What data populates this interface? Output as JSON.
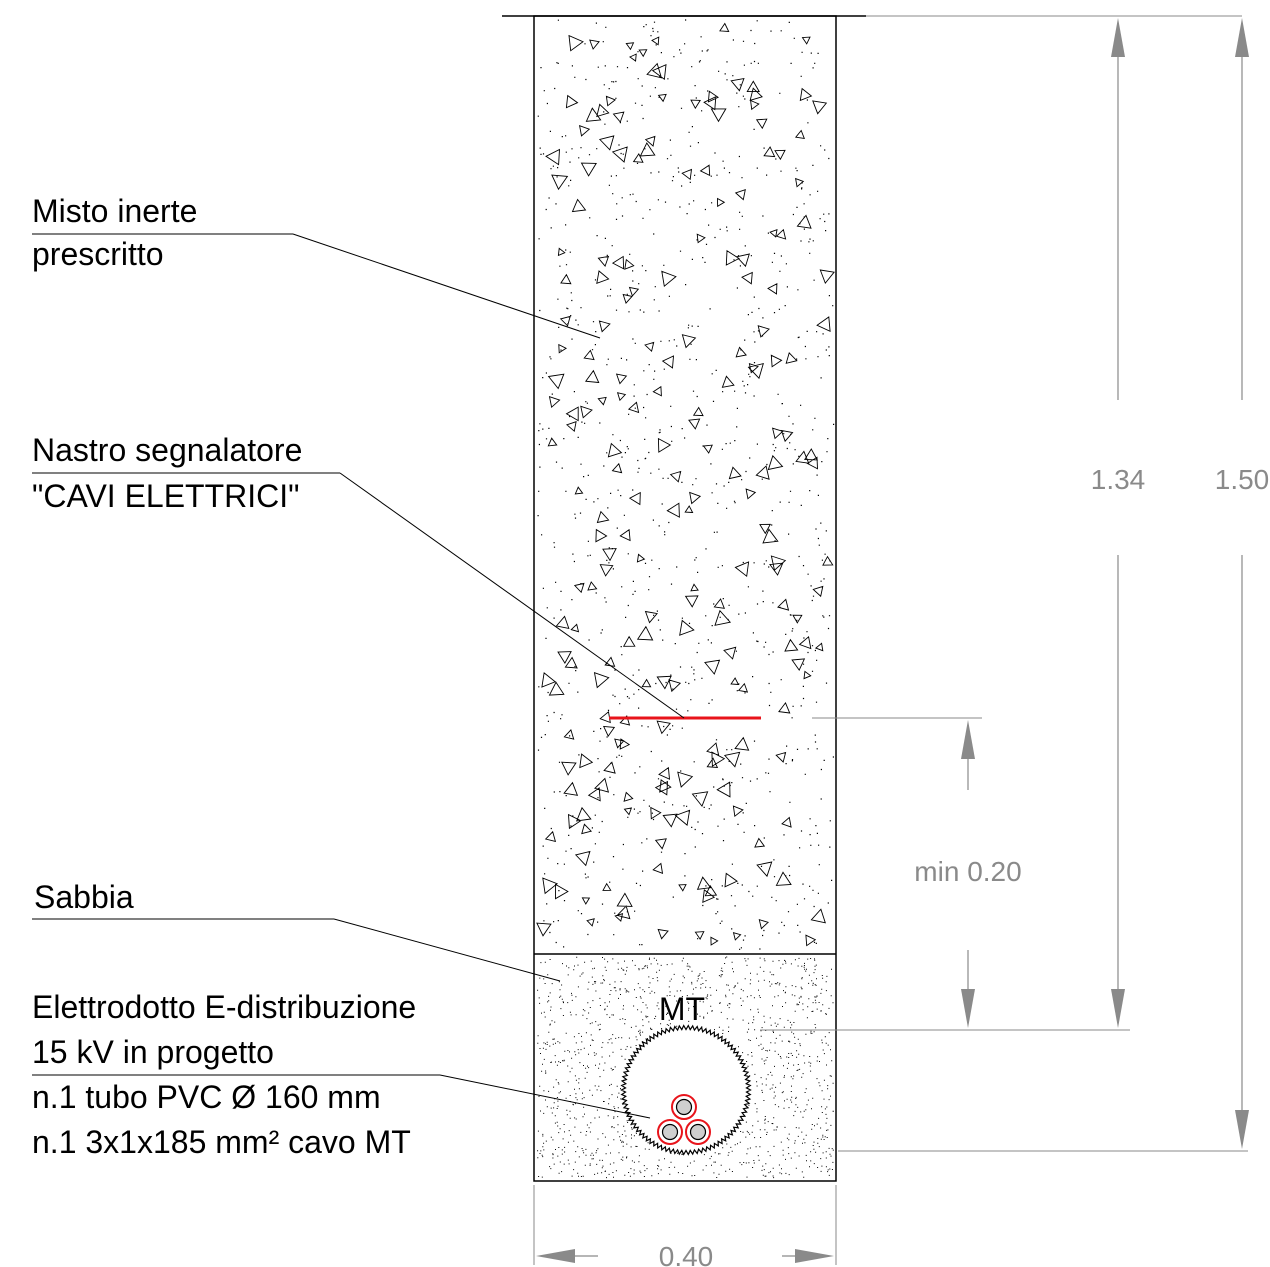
{
  "labels": {
    "fill": [
      "Misto inerte",
      "prescritto"
    ],
    "tape": [
      "Nastro segnalatore",
      "\"CAVI ELETTRICI\""
    ],
    "sand": [
      "Sabbia"
    ],
    "line": [
      "Elettrodotto E-distribuzione",
      "15 kV in progetto",
      "n.1 tubo PVC Ø 160 mm",
      "n.1 3x1x185 mm² cavo MT"
    ]
  },
  "conduit_label": "MT",
  "dimensions": {
    "depth_to_sand": "1.34",
    "total_depth": "1.50",
    "tape_clearance": "min 0.20",
    "width": "0.40"
  },
  "colors": {
    "line": "#000000",
    "dimension": "#8a8a8a",
    "tape": "#e8141b",
    "cable_ring": "#e8141b",
    "cable_core": "#cfcfcf"
  }
}
